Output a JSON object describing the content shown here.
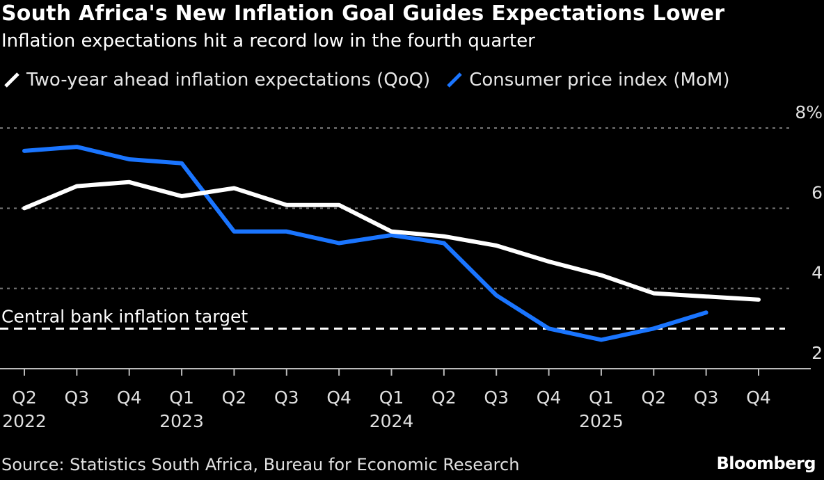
{
  "header": {
    "title": "South Africa's New Inflation Goal Guides Expectations Lower",
    "subtitle": "Inflation expectations hit a record low in the fourth quarter"
  },
  "legend": [
    {
      "label": "Two-year ahead inflation expectations (QoQ)",
      "color": "#ffffff"
    },
    {
      "label": "Consumer price index (MoM)",
      "color": "#1a75ff"
    }
  ],
  "footer": {
    "source": "Source: Statistics South Africa, Bureau for Economic Research",
    "brand": "Bloomberg"
  },
  "chart_data": {
    "type": "line",
    "title": "South Africa's New Inflation Goal Guides Expectations Lower",
    "subtitle": "Inflation expectations hit a record low in the fourth quarter",
    "xlabel": "",
    "ylabel": "",
    "categories": [
      "Q2 2022",
      "Q3 2022",
      "Q4 2022",
      "Q1 2023",
      "Q2 2023",
      "Q3 2023",
      "Q4 2023",
      "Q1 2024",
      "Q2 2024",
      "Q3 2024",
      "Q4 2024",
      "Q1 2025",
      "Q2 2025",
      "Q3 2025",
      "Q4 2025"
    ],
    "x_tick_labels": [
      {
        "quarter": "Q2",
        "year": "2022"
      },
      {
        "quarter": "Q3",
        "year": ""
      },
      {
        "quarter": "Q4",
        "year": ""
      },
      {
        "quarter": "Q1",
        "year": "2023"
      },
      {
        "quarter": "Q2",
        "year": ""
      },
      {
        "quarter": "Q3",
        "year": ""
      },
      {
        "quarter": "Q4",
        "year": ""
      },
      {
        "quarter": "Q1",
        "year": "2024"
      },
      {
        "quarter": "Q2",
        "year": ""
      },
      {
        "quarter": "Q3",
        "year": ""
      },
      {
        "quarter": "Q4",
        "year": ""
      },
      {
        "quarter": "Q1",
        "year": "2025"
      },
      {
        "quarter": "Q2",
        "year": ""
      },
      {
        "quarter": "Q3",
        "year": ""
      },
      {
        "quarter": "Q4",
        "year": ""
      }
    ],
    "series": [
      {
        "name": "Two-year ahead inflation expectations (QoQ)",
        "color": "#ffffff",
        "values": [
          6.0,
          6.55,
          6.65,
          6.3,
          6.5,
          6.08,
          6.08,
          5.42,
          5.3,
          5.07,
          4.67,
          4.33,
          3.88,
          3.8,
          3.72
        ]
      },
      {
        "name": "Consumer price index (MoM)",
        "color": "#1a75ff",
        "values": [
          7.43,
          7.53,
          7.22,
          7.12,
          5.42,
          5.42,
          5.13,
          5.33,
          5.13,
          3.83,
          3.0,
          2.72,
          3.0,
          3.4,
          null
        ]
      }
    ],
    "reference_line": {
      "label": "Central bank inflation target",
      "value": 3.0,
      "style": "dashed"
    },
    "y_ticks": [
      {
        "value": 2,
        "label": "2"
      },
      {
        "value": 4,
        "label": "4"
      },
      {
        "value": 6,
        "label": "6"
      },
      {
        "value": 8,
        "label": "8%"
      }
    ],
    "ylim": [
      2,
      8
    ],
    "y_axis_side": "right",
    "grid": true,
    "legend_position": "top-left"
  }
}
